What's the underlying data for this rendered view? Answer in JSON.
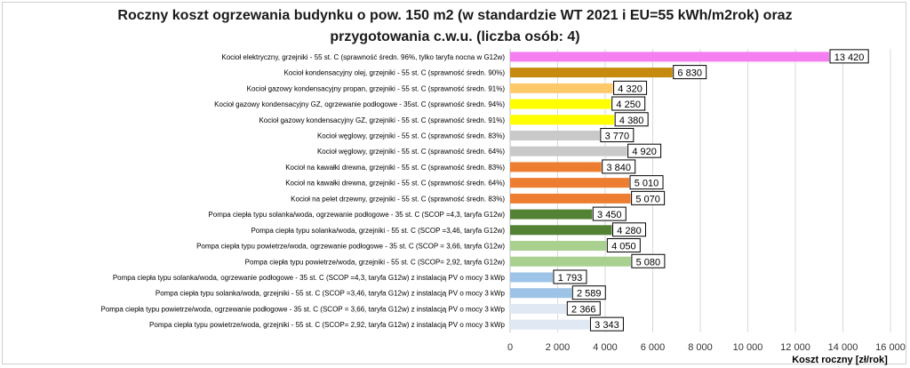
{
  "chart_data": {
    "type": "bar",
    "orientation": "horizontal",
    "title_line1": "Roczny koszt ogrzewania budynku  o pow. 150 m2 (w standardzie WT 2021 i EU=55 kWh/m2rok) oraz",
    "title_line2": "przygotowania c.w.u. (liczba osób: 4)",
    "xlabel": "Koszt roczny [zł/rok]",
    "ylabel": "",
    "xlim": [
      0,
      16000
    ],
    "xticks": [
      0,
      2000,
      4000,
      6000,
      8000,
      10000,
      12000,
      14000,
      16000
    ],
    "xtick_labels": [
      "0",
      "2 000",
      "4 000",
      "6 000",
      "8 000",
      "10 000",
      "12 000",
      "14 000",
      "16 000"
    ],
    "grid": "vertical",
    "categories": [
      "Kocioł elektryczny,  grzejniki - 55 st. C (sprawność średn. 96%, tylko taryfa nocna w G12w)",
      "Kocioł kondensacyjny olej, grzejniki - 55 st. C  (sprawność średn. 90%)",
      "Kocioł gazowy kondensacyjny propan, grzejniki - 55 st. C  (sprawność średn. 91%)",
      "Kocioł gazowy kondensacyjny GZ, ogrzewanie podłogowe - 35st. C  (sprawność średn. 94%)",
      "Kocioł gazowy kondensacyjny GZ, grzejniki - 55 st. C  (sprawność średn. 91%)",
      "Kocioł węglowy,  grzejniki - 55 st. C  (sprawność średn. 83%)",
      "Kocioł węglowy,  grzejniki - 55 st. C  (sprawność średn. 64%)",
      "Kocioł na kawałki drewna, grzejniki - 55 st. C (sprawność średn. 83%)",
      "Kocioł na kawałki drewna, grzejniki - 55 st. C  (sprawność średn. 64%)",
      "Kocioł na pelet drzewny, grzejniki - 55 st. C  (sprawność średn. 83%)",
      "Pompa ciepła typu solanka/woda, ogrzewanie podłogowe - 35 st. C (SCOP =4,3, taryfa G12w)",
      "Pompa ciepła typu solanka/woda, grzejniki - 55 st. C (SCOP =3,46, taryfa G12w)",
      "Pompa ciepła typu powietrze/woda, ogrzewanie podłogowe - 35 st. C (SCOP = 3,66, taryfa G12w)",
      "Pompa ciepła typu powietrze/woda, grzejniki - 55 st. C (SCOP= 2,92, taryfa G12w)",
      "Pompa ciepła typu solanka/woda, ogrzewanie podłogowe - 35 st. C  (SCOP =4,3, taryfa G12w) z instalacją PV o mocy 3 kWp",
      "Pompa ciepła typu solanka/woda, grzejniki - 55 st. C (SCOP =3,46, taryfa G12w) z instalacją PV o mocy 3 kWp",
      "Pompa ciepła typu powietrze/woda, ogrzewanie podłogowe - 35 st. C (SCOP = 3,66, taryfa G12w) z instalacją PV o mocy 3 kWp",
      "Pompa ciepła typu powietrze/woda, grzejniki - 55 st. C (SCOP= 2,92, taryfa G12w) z instalacją PV o mocy 3 kWp"
    ],
    "values": [
      13420,
      6830,
      4320,
      4250,
      4380,
      3770,
      4920,
      3840,
      5010,
      5070,
      3450,
      4280,
      4050,
      5080,
      1793,
      2589,
      2366,
      3343
    ],
    "value_labels": [
      "13 420",
      "6 830",
      "4 320",
      "4 250",
      "4 380",
      "3 770",
      "4 920",
      "3 840",
      "5 010",
      "5 070",
      "3 450",
      "4 280",
      "4 050",
      "5 080",
      "1 793",
      "2 589",
      "2 366",
      "3 343"
    ],
    "colors": [
      "#f57ff0",
      "#c58a0e",
      "#ffc869",
      "#ffff00",
      "#ffff00",
      "#c9c9c9",
      "#c9c9c9",
      "#ed7d31",
      "#ed7d31",
      "#ed7d31",
      "#548235",
      "#548235",
      "#a9d08e",
      "#a9d08e",
      "#9dc3e6",
      "#9dc3e6",
      "#dfe8f3",
      "#dfe8f3"
    ]
  }
}
